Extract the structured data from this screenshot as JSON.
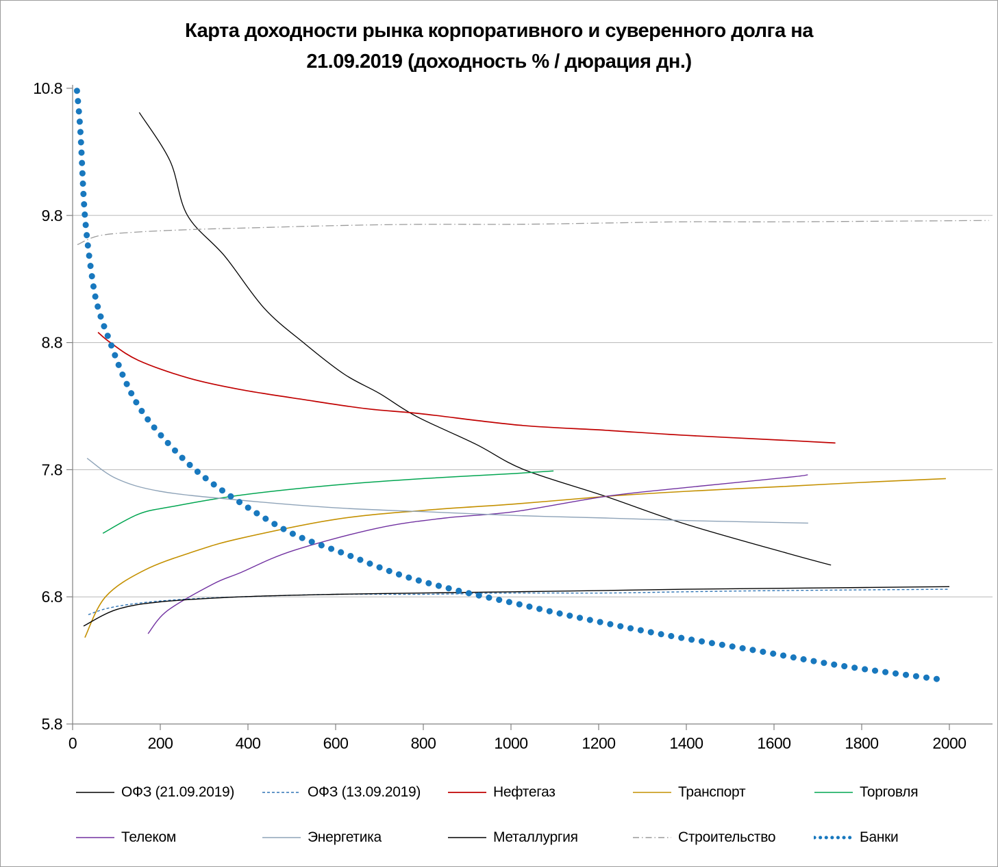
{
  "chart_data": {
    "type": "line",
    "title": "Карта доходности рынка корпоративного и суверенного долга на 21.09.2019 (доходность % / дюрация дн.)",
    "title_lines": [
      "Карта доходности рынка корпоративного и суверенного долга на",
      "21.09.2019 (доходность % / дюрация дн.)"
    ],
    "xlabel": "",
    "ylabel": "",
    "xlim": [
      0,
      2000
    ],
    "ylim": [
      5.8,
      10.8
    ],
    "x_ticks": [
      0,
      200,
      400,
      600,
      800,
      1000,
      1200,
      1400,
      1600,
      1800,
      2000
    ],
    "y_ticks": [
      5.8,
      6.8,
      7.8,
      8.8,
      9.8,
      10.8
    ],
    "y_gridlines": [
      6.8,
      7.8,
      8.8,
      9.8
    ],
    "grid": true,
    "legend_position": "bottom",
    "colors": {
      "grid": "#b7b7b7",
      "axis": "#808080",
      "text": "#000000"
    },
    "series": [
      {
        "key": "ofz-21-09-2019",
        "name": "ОФЗ (21.09.2019)",
        "color": "#000000",
        "width": 1.3,
        "dash": "solid",
        "points": [
          [
            152,
            10.61
          ],
          [
            222,
            10.23
          ],
          [
            262,
            9.8
          ],
          [
            347,
            9.48
          ],
          [
            437,
            9.07
          ],
          [
            530,
            8.79
          ],
          [
            620,
            8.55
          ],
          [
            700,
            8.4
          ],
          [
            784,
            8.22
          ],
          [
            920,
            8.0
          ],
          [
            1030,
            7.8
          ],
          [
            1216,
            7.59
          ],
          [
            1400,
            7.37
          ],
          [
            1633,
            7.14
          ],
          [
            1730,
            7.05
          ]
        ]
      },
      {
        "key": "ofz-13-09-2019",
        "name": "ОФЗ (13.09.2019)",
        "color": "#2E74B5",
        "width": 1.4,
        "dash": "dashed",
        "points": [
          [
            36,
            6.66
          ],
          [
            80,
            6.71
          ],
          [
            150,
            6.75
          ],
          [
            250,
            6.78
          ],
          [
            383,
            6.8
          ],
          [
            600,
            6.82
          ],
          [
            800,
            6.82
          ],
          [
            1008,
            6.83
          ],
          [
            1216,
            6.83
          ],
          [
            1400,
            6.84
          ],
          [
            1633,
            6.85
          ],
          [
            2000,
            6.86
          ]
        ]
      },
      {
        "key": "neftegaz",
        "name": "Нефтегаз",
        "color": "#C00000",
        "width": 1.7,
        "dash": "solid",
        "points": [
          [
            58,
            8.88
          ],
          [
            86,
            8.8
          ],
          [
            150,
            8.66
          ],
          [
            265,
            8.52
          ],
          [
            383,
            8.43
          ],
          [
            530,
            8.35
          ],
          [
            669,
            8.28
          ],
          [
            795,
            8.24
          ],
          [
            1020,
            8.15
          ],
          [
            1216,
            8.11
          ],
          [
            1400,
            8.07
          ],
          [
            1633,
            8.03
          ],
          [
            1740,
            8.01
          ]
        ]
      },
      {
        "key": "transport",
        "name": "Транспорт",
        "color": "#C49000",
        "width": 1.6,
        "dash": "solid",
        "points": [
          [
            28,
            6.48
          ],
          [
            75,
            6.8
          ],
          [
            164,
            7.01
          ],
          [
            280,
            7.16
          ],
          [
            383,
            7.26
          ],
          [
            600,
            7.41
          ],
          [
            800,
            7.48
          ],
          [
            1008,
            7.53
          ],
          [
            1216,
            7.59
          ],
          [
            1400,
            7.63
          ],
          [
            1633,
            7.67
          ],
          [
            1800,
            7.7
          ],
          [
            1992,
            7.73
          ]
        ]
      },
      {
        "key": "torgovlya",
        "name": "Торговля",
        "color": "#00A550",
        "width": 1.5,
        "dash": "solid",
        "points": [
          [
            69,
            7.3
          ],
          [
            150,
            7.45
          ],
          [
            227,
            7.51
          ],
          [
            383,
            7.6
          ],
          [
            600,
            7.68
          ],
          [
            800,
            7.73
          ],
          [
            1008,
            7.77
          ],
          [
            1097,
            7.79
          ]
        ]
      },
      {
        "key": "telekom",
        "name": "Телеком",
        "color": "#7030A0",
        "width": 1.4,
        "dash": "solid",
        "points": [
          [
            172,
            6.51
          ],
          [
            216,
            6.69
          ],
          [
            320,
            6.9
          ],
          [
            383,
            6.99
          ],
          [
            500,
            7.16
          ],
          [
            695,
            7.34
          ],
          [
            850,
            7.42
          ],
          [
            1008,
            7.47
          ],
          [
            1216,
            7.59
          ],
          [
            1400,
            7.66
          ],
          [
            1633,
            7.74
          ],
          [
            1677,
            7.76
          ]
        ]
      },
      {
        "key": "energetika",
        "name": "Энергетика",
        "color": "#8EA3B8",
        "width": 1.4,
        "dash": "solid",
        "points": [
          [
            33,
            7.89
          ],
          [
            100,
            7.73
          ],
          [
            200,
            7.63
          ],
          [
            383,
            7.56
          ],
          [
            600,
            7.5
          ],
          [
            800,
            7.47
          ],
          [
            1008,
            7.44
          ],
          [
            1216,
            7.42
          ],
          [
            1400,
            7.4
          ],
          [
            1678,
            7.38
          ]
        ]
      },
      {
        "key": "metallurgiya",
        "name": "Металлургия",
        "color": "#000000",
        "width": 1.4,
        "dash": "solid",
        "points": [
          [
            25,
            6.57
          ],
          [
            100,
            6.7
          ],
          [
            200,
            6.76
          ],
          [
            383,
            6.8
          ],
          [
            600,
            6.82
          ],
          [
            800,
            6.83
          ],
          [
            1008,
            6.84
          ],
          [
            1216,
            6.85
          ],
          [
            1400,
            6.86
          ],
          [
            1700,
            6.87
          ],
          [
            2000,
            6.88
          ]
        ]
      },
      {
        "key": "stroitelstvo",
        "name": "Строительство",
        "color": "#9a9a9a",
        "width": 1.3,
        "dash": "dashdot",
        "points": [
          [
            11,
            9.57
          ],
          [
            60,
            9.64
          ],
          [
            150,
            9.67
          ],
          [
            281,
            9.69
          ],
          [
            383,
            9.7
          ],
          [
            600,
            9.72
          ],
          [
            800,
            9.73
          ],
          [
            1008,
            9.73
          ],
          [
            1216,
            9.74
          ],
          [
            1400,
            9.75
          ],
          [
            1633,
            9.75
          ],
          [
            2090,
            9.76
          ]
        ]
      },
      {
        "key": "banki",
        "name": "Банки",
        "color": "#1878BE",
        "width": 9,
        "dash": "dots",
        "points": [
          [
            10,
            10.78
          ],
          [
            18,
            10.45
          ],
          [
            28,
            9.8
          ],
          [
            45,
            9.3
          ],
          [
            60,
            9.05
          ],
          [
            86,
            8.8
          ],
          [
            120,
            8.5
          ],
          [
            160,
            8.25
          ],
          [
            220,
            8.0
          ],
          [
            290,
            7.77
          ],
          [
            383,
            7.54
          ],
          [
            500,
            7.3
          ],
          [
            620,
            7.14
          ],
          [
            750,
            6.97
          ],
          [
            878,
            6.85
          ],
          [
            1008,
            6.75
          ],
          [
            1150,
            6.64
          ],
          [
            1352,
            6.5
          ],
          [
            1555,
            6.38
          ],
          [
            1750,
            6.26
          ],
          [
            1980,
            6.15
          ]
        ]
      }
    ]
  }
}
